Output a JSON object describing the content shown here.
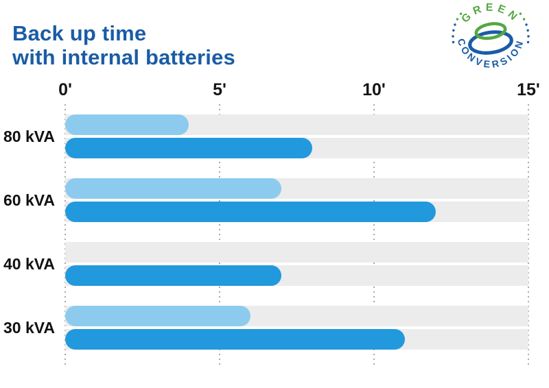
{
  "title": {
    "line1": "Back up time",
    "line2": "with internal batteries"
  },
  "logo": {
    "arc_top_text": "GREEN",
    "arc_bottom_text": "CONVERSION",
    "green_color": "#55A742",
    "blue_color": "#1A5CA5"
  },
  "colors": {
    "title_blue": "#1A5CA5",
    "track_gray": "#ECECEC",
    "grid_dot_gray": "#A9A9A9",
    "tick_label_black": "#151515"
  },
  "chart_data": {
    "type": "bar",
    "orientation": "horizontal",
    "title": "Back up time with internal batteries",
    "unit": "minutes",
    "categories": [
      "80 kVA",
      "60 kVA",
      "40 kVA",
      "30 kVA"
    ],
    "series": [
      {
        "name": "light-blue",
        "color": "#8DCBEE",
        "values": [
          4,
          7,
          null,
          6
        ]
      },
      {
        "name": "dark-blue",
        "color": "#2299DD",
        "values": [
          8,
          12,
          7,
          11
        ]
      }
    ],
    "x_ticks": [
      "0'",
      "5'",
      "10'",
      "15'"
    ],
    "x_tick_values": [
      0,
      5,
      10,
      15
    ],
    "xlim": [
      0,
      15
    ],
    "grid": "vertical-dotted",
    "legend": "none"
  }
}
